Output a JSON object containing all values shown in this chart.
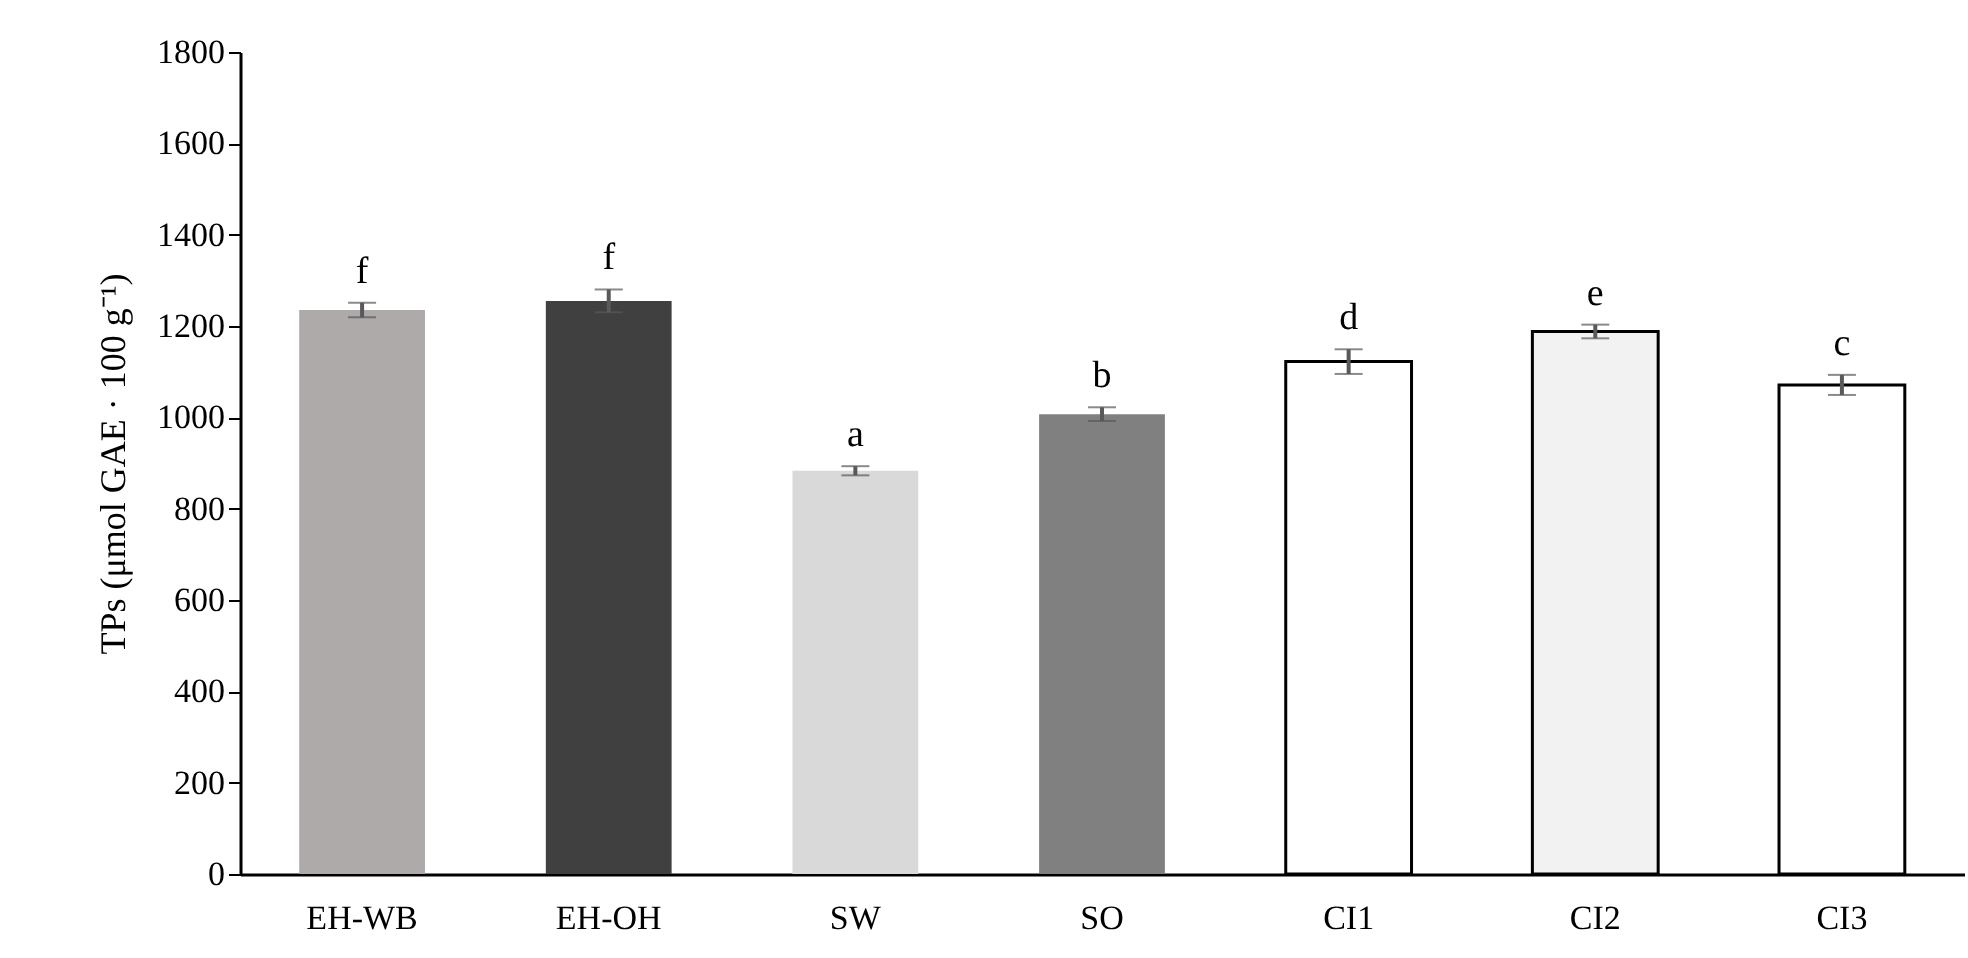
{
  "chart_data": {
    "type": "bar",
    "ylabel": "TPs (μmol GAE · 100 g⁻¹)",
    "categories": [
      "EH-WB",
      "EH-OH",
      "SW",
      "SO",
      "CI1",
      "CI2",
      "CI3"
    ],
    "values": [
      1235,
      1255,
      883,
      1007,
      1122,
      1188,
      1071
    ],
    "errors": [
      16,
      25,
      10,
      15,
      27,
      15,
      22
    ],
    "colors": [
      "#aeaaaa",
      "#404040",
      "#d9d9d9",
      "#808080",
      "#ffffff",
      "#f2f2f2",
      "#ffffff"
    ],
    "ylim": [
      0,
      1800
    ],
    "yticks": [
      0,
      200,
      400,
      600,
      800,
      1000,
      1200,
      1400,
      1600,
      1800
    ],
    "grid": false,
    "annotations": [
      {
        "text": "f",
        "x": "EH-WB",
        "y": 1251
      },
      {
        "text": "f",
        "x": "EH-OH",
        "y": 1280
      },
      {
        "text": "a",
        "x": "SW",
        "y": 893
      },
      {
        "text": "b",
        "x": "SO",
        "y": 1022
      },
      {
        "text": "d",
        "x": "CI1",
        "y": 1149
      },
      {
        "text": "e",
        "x": "CI2",
        "y": 1203
      },
      {
        "text": "c",
        "x": "CI3",
        "y": 1093
      }
    ]
  }
}
